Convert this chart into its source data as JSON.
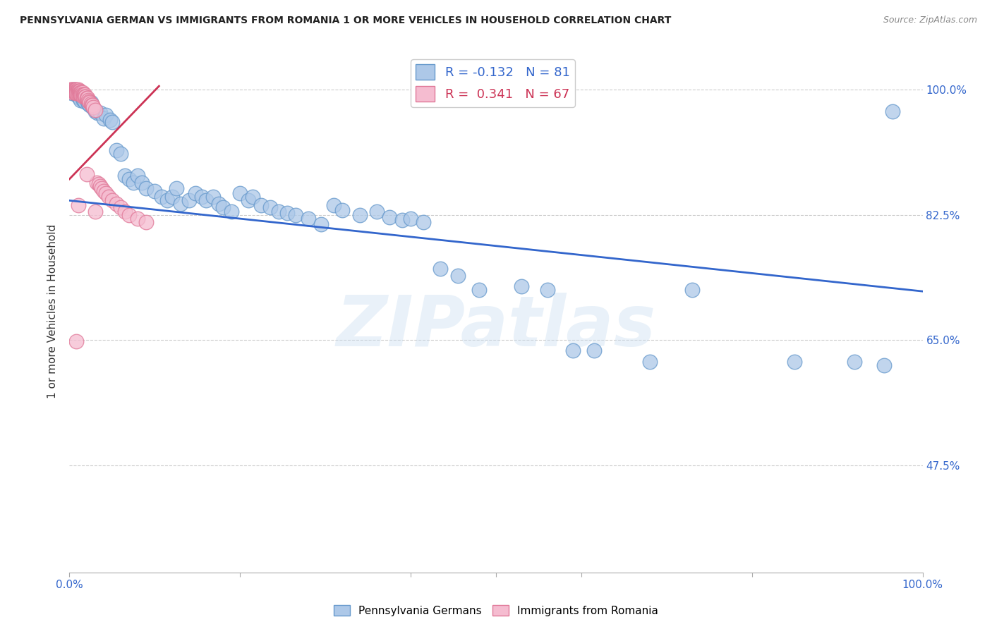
{
  "title": "PENNSYLVANIA GERMAN VS IMMIGRANTS FROM ROMANIA 1 OR MORE VEHICLES IN HOUSEHOLD CORRELATION CHART",
  "source": "Source: ZipAtlas.com",
  "ylabel": "1 or more Vehicles in Household",
  "blue_label": "Pennsylvania Germans",
  "pink_label": "Immigrants from Romania",
  "blue_R": -0.132,
  "blue_N": 81,
  "pink_R": 0.341,
  "pink_N": 67,
  "blue_color": "#adc8e8",
  "blue_edge": "#6699cc",
  "pink_color": "#f5bcd0",
  "pink_edge": "#e07898",
  "blue_line_color": "#3366cc",
  "pink_line_color": "#cc3355",
  "bg_color": "#ffffff",
  "watermark": "ZIPatlas",
  "xlim": [
    0.0,
    1.0
  ],
  "ylim": [
    0.325,
    1.055
  ],
  "yticks": [
    0.475,
    0.65,
    0.825,
    1.0
  ],
  "ytick_labels": [
    "47.5%",
    "65.0%",
    "82.5%",
    "100.0%"
  ],
  "blue_trend_x": [
    0.0,
    1.0
  ],
  "blue_trend_y": [
    0.845,
    0.718
  ],
  "pink_trend_x": [
    0.0,
    0.105
  ],
  "pink_trend_y": [
    0.875,
    1.005
  ],
  "blue_x": [
    0.003,
    0.005,
    0.006,
    0.007,
    0.008,
    0.009,
    0.01,
    0.011,
    0.012,
    0.013,
    0.014,
    0.015,
    0.016,
    0.017,
    0.018,
    0.019,
    0.02,
    0.022,
    0.024,
    0.025,
    0.027,
    0.03,
    0.033,
    0.036,
    0.04,
    0.043,
    0.048,
    0.05,
    0.055,
    0.06,
    0.065,
    0.07,
    0.075,
    0.08,
    0.085,
    0.09,
    0.1,
    0.108,
    0.115,
    0.12,
    0.125,
    0.13,
    0.14,
    0.148,
    0.155,
    0.16,
    0.168,
    0.175,
    0.18,
    0.19,
    0.2,
    0.21,
    0.215,
    0.225,
    0.235,
    0.245,
    0.255,
    0.265,
    0.28,
    0.295,
    0.31,
    0.32,
    0.34,
    0.36,
    0.375,
    0.39,
    0.4,
    0.415,
    0.435,
    0.455,
    0.48,
    0.53,
    0.56,
    0.59,
    0.615,
    0.68,
    0.73,
    0.85,
    0.92,
    0.955,
    0.965
  ],
  "blue_y": [
    0.995,
    1.0,
    0.998,
    0.995,
    0.993,
    0.998,
    0.99,
    0.992,
    0.988,
    0.985,
    0.992,
    0.988,
    0.985,
    0.99,
    0.983,
    0.988,
    0.985,
    0.98,
    0.978,
    0.982,
    0.975,
    0.97,
    0.968,
    0.968,
    0.96,
    0.965,
    0.958,
    0.955,
    0.915,
    0.91,
    0.88,
    0.875,
    0.87,
    0.88,
    0.87,
    0.862,
    0.858,
    0.85,
    0.845,
    0.85,
    0.862,
    0.84,
    0.845,
    0.855,
    0.85,
    0.845,
    0.85,
    0.84,
    0.835,
    0.83,
    0.855,
    0.845,
    0.85,
    0.838,
    0.835,
    0.83,
    0.828,
    0.825,
    0.82,
    0.812,
    0.838,
    0.832,
    0.825,
    0.83,
    0.822,
    0.818,
    0.82,
    0.815,
    0.75,
    0.74,
    0.72,
    0.725,
    0.72,
    0.635,
    0.635,
    0.62,
    0.72,
    0.62,
    0.62,
    0.615,
    0.97
  ],
  "pink_x": [
    0.001,
    0.002,
    0.002,
    0.003,
    0.003,
    0.004,
    0.004,
    0.005,
    0.005,
    0.006,
    0.006,
    0.006,
    0.007,
    0.007,
    0.007,
    0.008,
    0.008,
    0.008,
    0.009,
    0.009,
    0.01,
    0.01,
    0.01,
    0.011,
    0.011,
    0.012,
    0.012,
    0.013,
    0.013,
    0.014,
    0.014,
    0.015,
    0.015,
    0.016,
    0.016,
    0.017,
    0.018,
    0.018,
    0.019,
    0.02,
    0.021,
    0.022,
    0.023,
    0.024,
    0.025,
    0.026,
    0.027,
    0.028,
    0.03,
    0.032,
    0.034,
    0.036,
    0.038,
    0.04,
    0.043,
    0.046,
    0.05,
    0.055,
    0.06,
    0.065,
    0.07,
    0.08,
    0.09,
    0.01,
    0.02,
    0.03,
    0.008
  ],
  "pink_y": [
    1.0,
    1.0,
    0.998,
    1.0,
    0.998,
    0.998,
    0.996,
    1.0,
    0.998,
    1.0,
    0.998,
    0.996,
    1.0,
    0.998,
    0.996,
    1.0,
    0.998,
    0.995,
    0.998,
    0.996,
    1.0,
    0.998,
    0.995,
    0.998,
    0.996,
    0.998,
    0.995,
    0.996,
    0.993,
    0.996,
    0.993,
    0.996,
    0.993,
    0.993,
    0.99,
    0.992,
    0.993,
    0.99,
    0.99,
    0.988,
    0.988,
    0.985,
    0.983,
    0.982,
    0.98,
    0.978,
    0.978,
    0.975,
    0.972,
    0.87,
    0.868,
    0.865,
    0.862,
    0.858,
    0.855,
    0.85,
    0.845,
    0.84,
    0.835,
    0.83,
    0.825,
    0.82,
    0.815,
    0.838,
    0.882,
    0.83,
    0.648
  ]
}
